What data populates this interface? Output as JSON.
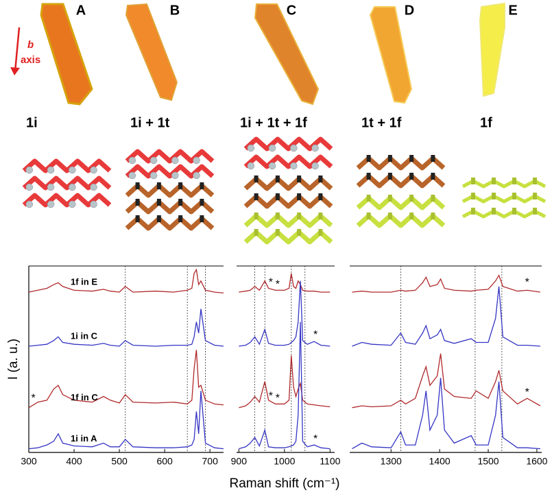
{
  "figure": {
    "b_label": "b",
    "axis_label": "axis",
    "panels": [
      {
        "letter": "A",
        "phase": "1i"
      },
      {
        "letter": "B",
        "phase": "1i + 1t"
      },
      {
        "letter": "C",
        "phase": "1i + 1t + 1f"
      },
      {
        "letter": "D",
        "phase": "1t + 1f"
      },
      {
        "letter": "E",
        "phase": "1f"
      }
    ]
  },
  "chart_data": [
    {
      "type": "line",
      "ylabel": "I (a. u.)",
      "x": [
        300,
        320,
        340,
        355,
        365,
        375,
        400,
        440,
        465,
        480,
        500,
        513,
        530,
        580,
        620,
        650,
        660,
        665,
        670,
        675,
        680,
        690,
        710,
        730
      ],
      "xlim": [
        300,
        730
      ],
      "xticks": [
        300,
        400,
        500,
        600,
        700
      ],
      "ylim": [
        0,
        100
      ],
      "vlines": [
        513,
        650,
        690
      ],
      "series": [
        {
          "name": "1f in E",
          "color": "#b0282a",
          "values": [
            86,
            87,
            88,
            90,
            91,
            89,
            87,
            86.5,
            87.5,
            86.5,
            86,
            89,
            86,
            86.5,
            86,
            87,
            88,
            96,
            98,
            90,
            92,
            87,
            86,
            85.5
          ]
        },
        {
          "name": "1i in C",
          "color": "#3434c4",
          "values": [
            57,
            57.5,
            58,
            60,
            62,
            59,
            58,
            57.5,
            58.5,
            57.5,
            57,
            60,
            57.5,
            57,
            57.5,
            57.5,
            58,
            62,
            70,
            64,
            77,
            60,
            57.5,
            57
          ]
        },
        {
          "name": "1f in C",
          "color": "#b0282a",
          "values": [
            24,
            27,
            28,
            34,
            36,
            31,
            28,
            27,
            30,
            28,
            26.5,
            31,
            27,
            26.5,
            27,
            26,
            28,
            45,
            55,
            35,
            36,
            28,
            26,
            25.5
          ]
        },
        {
          "name": "1i in A",
          "color": "#3434c4",
          "values": [
            2,
            2.5,
            4,
            6,
            10,
            5,
            3.5,
            3,
            5,
            3,
            3,
            7,
            3,
            2.5,
            2.5,
            3,
            4,
            7,
            22,
            10,
            33,
            5,
            2.5,
            2
          ]
        }
      ],
      "annotations": [
        {
          "text": "*",
          "x": 310,
          "y": 29
        }
      ]
    },
    {
      "type": "line",
      "xlabel": "Raman shift (cm⁻¹)",
      "x": [
        900,
        915,
        925,
        935,
        945,
        957,
        965,
        980,
        1000,
        1010,
        1015,
        1020,
        1025,
        1030,
        1035,
        1040,
        1050,
        1065,
        1080,
        1100
      ],
      "xlim": [
        895,
        1110
      ],
      "xticks": [
        900,
        1000,
        1100
      ],
      "ylim": [
        0,
        100
      ],
      "vlines": [
        935,
        957,
        1015,
        1045
      ],
      "series": [
        {
          "color": "#b0282a",
          "values": [
            86,
            86.5,
            87,
            89,
            87,
            92,
            88,
            87,
            87,
            88,
            96,
            89,
            88,
            92,
            90,
            87,
            86.5,
            86.5,
            86,
            86
          ]
        },
        {
          "color": "#3434c4",
          "values": [
            57,
            57.5,
            59,
            62,
            58,
            66,
            58.5,
            57.5,
            57.5,
            58,
            59,
            60,
            62,
            70,
            92,
            60,
            58,
            59.5,
            57.5,
            57
          ]
        },
        {
          "color": "#b0282a",
          "values": [
            24,
            25,
            27,
            30,
            27,
            38,
            28,
            26,
            26,
            28,
            52,
            35,
            30,
            34,
            37,
            28,
            26,
            25.5,
            25,
            24.5
          ]
        },
        {
          "color": "#3434c4",
          "values": [
            2,
            3,
            5,
            8,
            3.5,
            12,
            3,
            2.5,
            2.5,
            3,
            3.5,
            4,
            6,
            20,
            70,
            6,
            3,
            4,
            2.5,
            2
          ]
        }
      ],
      "annotations": [
        {
          "text": "*",
          "x": 970,
          "y": 91
        },
        {
          "text": "*",
          "x": 985,
          "y": 90
        },
        {
          "text": "*",
          "x": 1068,
          "y": 63
        },
        {
          "text": "*",
          "x": 970,
          "y": 30
        },
        {
          "text": "*",
          "x": 985,
          "y": 29
        },
        {
          "text": "*",
          "x": 1068,
          "y": 7
        }
      ]
    },
    {
      "type": "line",
      "x": [
        1220,
        1240,
        1260,
        1300,
        1320,
        1330,
        1350,
        1365,
        1372,
        1380,
        1395,
        1402,
        1410,
        1430,
        1465,
        1475,
        1500,
        1515,
        1522,
        1530,
        1560,
        1580,
        1607
      ],
      "xlim": [
        1215,
        1610
      ],
      "xticks": [
        1300,
        1400,
        1500,
        1600
      ],
      "ylim": [
        0,
        100
      ],
      "vlines": [
        1320,
        1473,
        1528
      ],
      "series": [
        {
          "color": "#b0282a",
          "values": [
            86,
            86.5,
            86,
            86,
            87,
            86.5,
            87,
            91,
            94,
            89,
            90,
            93,
            88,
            87,
            86.5,
            87,
            87.5,
            92,
            95,
            89,
            86.5,
            87,
            86
          ]
        },
        {
          "color": "#3434c4",
          "values": [
            57,
            59,
            58,
            57.5,
            64,
            59,
            58,
            64,
            68,
            61,
            63,
            66,
            60,
            58.5,
            61,
            59,
            59,
            72,
            89,
            62,
            57.5,
            57.5,
            57
          ]
        },
        {
          "color": "#b0282a",
          "values": [
            24,
            25,
            24.5,
            25,
            28,
            26,
            29,
            41,
            46,
            36,
            41,
            53,
            34,
            30,
            29,
            33,
            29,
            38,
            44,
            33,
            26,
            29,
            25
          ]
        },
        {
          "color": "#3434c4",
          "values": [
            2,
            5,
            3,
            2.5,
            11,
            4,
            4,
            20,
            33,
            12,
            20,
            40,
            12,
            5,
            9,
            4,
            4,
            20,
            38,
            8,
            2.5,
            2.5,
            2
          ]
        }
      ],
      "annotations": [
        {
          "text": "*",
          "x": 1580,
          "y": 91
        },
        {
          "text": "*",
          "x": 1580,
          "y": 32
        }
      ]
    }
  ]
}
